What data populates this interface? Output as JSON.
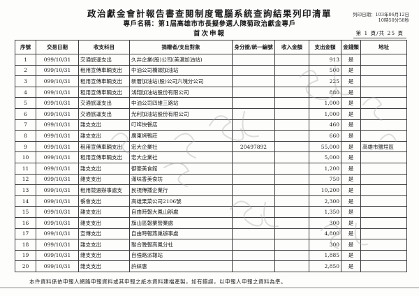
{
  "header": {
    "title": "政治獻金會計報告書查閱制度電腦系統查詢結果列印清單",
    "account_name": "專戶名稱：第1屆高雄市市長擬參選人陳菊政治獻金專戶",
    "report_type": "首次申報",
    "print_date_line1": "列印日期：103年06月12日",
    "print_date_line2": "10時50分58秒",
    "page_info": "第 1 頁/共 25 頁"
  },
  "table": {
    "columns": [
      "序號",
      "交易日期",
      "收支科目",
      "捐贈者/支出對象",
      "身分證/統一編號",
      "收入金額",
      "支出金額",
      "金錢類",
      "地址"
    ],
    "rows": [
      [
        "1",
        "099/10/31",
        "交通旅運支出",
        "久井企業(股)公司(美濃加油站)",
        "",
        "",
        "913",
        "是",
        ""
      ],
      [
        "2",
        "099/10/31",
        "租用宣傳車輛支出",
        "中油公司橋頭加油站",
        "",
        "",
        "500",
        "是",
        ""
      ],
      [
        "3",
        "099/10/31",
        "租用宣傳車輛支出",
        "新厝加油站(股)公司六塊分公司",
        "",
        "",
        "225",
        "是",
        ""
      ],
      [
        "4",
        "099/10/31",
        "租用宣傳車輛支出",
        "鴻翔加油站股份有限公司",
        "",
        "",
        "880",
        "是",
        ""
      ],
      [
        "5",
        "099/10/31",
        "交通旅運支出",
        "中油公司四維三路站",
        "",
        "",
        "1,000",
        "是",
        ""
      ],
      [
        "6",
        "099/10/31",
        "交通旅運支出",
        "光利加油站股份有限公司",
        "",
        "",
        "1,000",
        "是",
        ""
      ],
      [
        "7",
        "099/10/31",
        "雜支支出",
        "叮哖快餐店",
        "",
        "",
        "460",
        "是",
        ""
      ],
      [
        "8",
        "099/10/31",
        "雜支支出",
        "廣東烤鴨莊",
        "",
        "",
        "660",
        "是",
        ""
      ],
      [
        "9",
        "099/10/31",
        "租用宣傳車輛支出",
        "宏大企業社",
        "20497892",
        "",
        "55,000",
        "是",
        "高雄市鹽埕區"
      ],
      [
        "10",
        "099/10/31",
        "租用宣傳車輛支出",
        "宏大企業社",
        "",
        "",
        "5,000",
        "是",
        ""
      ],
      [
        "11",
        "099/10/31",
        "雜支支出",
        "御豪美食館",
        "",
        "",
        "1,200",
        "是",
        ""
      ],
      [
        "12",
        "099/10/31",
        "雜支支出",
        "滿味香美食坊",
        "",
        "",
        "750",
        "是",
        ""
      ],
      [
        "13",
        "099/10/31",
        "租用競選辦事處支",
        "民視傳播企業行",
        "",
        "",
        "10,200",
        "是",
        ""
      ],
      [
        "14",
        "099/10/31",
        "餐會支出",
        "高雄果菜公司2106號",
        "",
        "",
        "2,300",
        "是",
        ""
      ],
      [
        "15",
        "099/10/31",
        "雜支支出",
        "自由時報大鳳山辦處",
        "",
        "",
        "1,350",
        "是",
        ""
      ],
      [
        "16",
        "099/10/31",
        "雜支支出",
        "旗山區報業營業處",
        "",
        "",
        "300",
        "是",
        ""
      ],
      [
        "17",
        "099/10/31",
        "宣傳支出",
        "自由時報燕巢辦事處",
        "",
        "",
        "4,800",
        "是",
        ""
      ],
      [
        "18",
        "099/10/31",
        "雜支支出",
        "聯合晚報高鳳分社",
        "",
        "",
        "300",
        "是",
        ""
      ],
      [
        "19",
        "099/10/31",
        "雜支支出",
        "自強路派報站",
        "",
        "",
        "1,885",
        "是",
        ""
      ],
      [
        "20",
        "099/10/31",
        "雜支支出",
        "許綵惠",
        "",
        "",
        "2,850",
        "是",
        ""
      ]
    ]
  },
  "footer": {
    "note": "本件資料係依申報人網路申報資料或其申報之紙本資料建檔產製，如有錯誤，以申報人申報之資料為準。"
  }
}
